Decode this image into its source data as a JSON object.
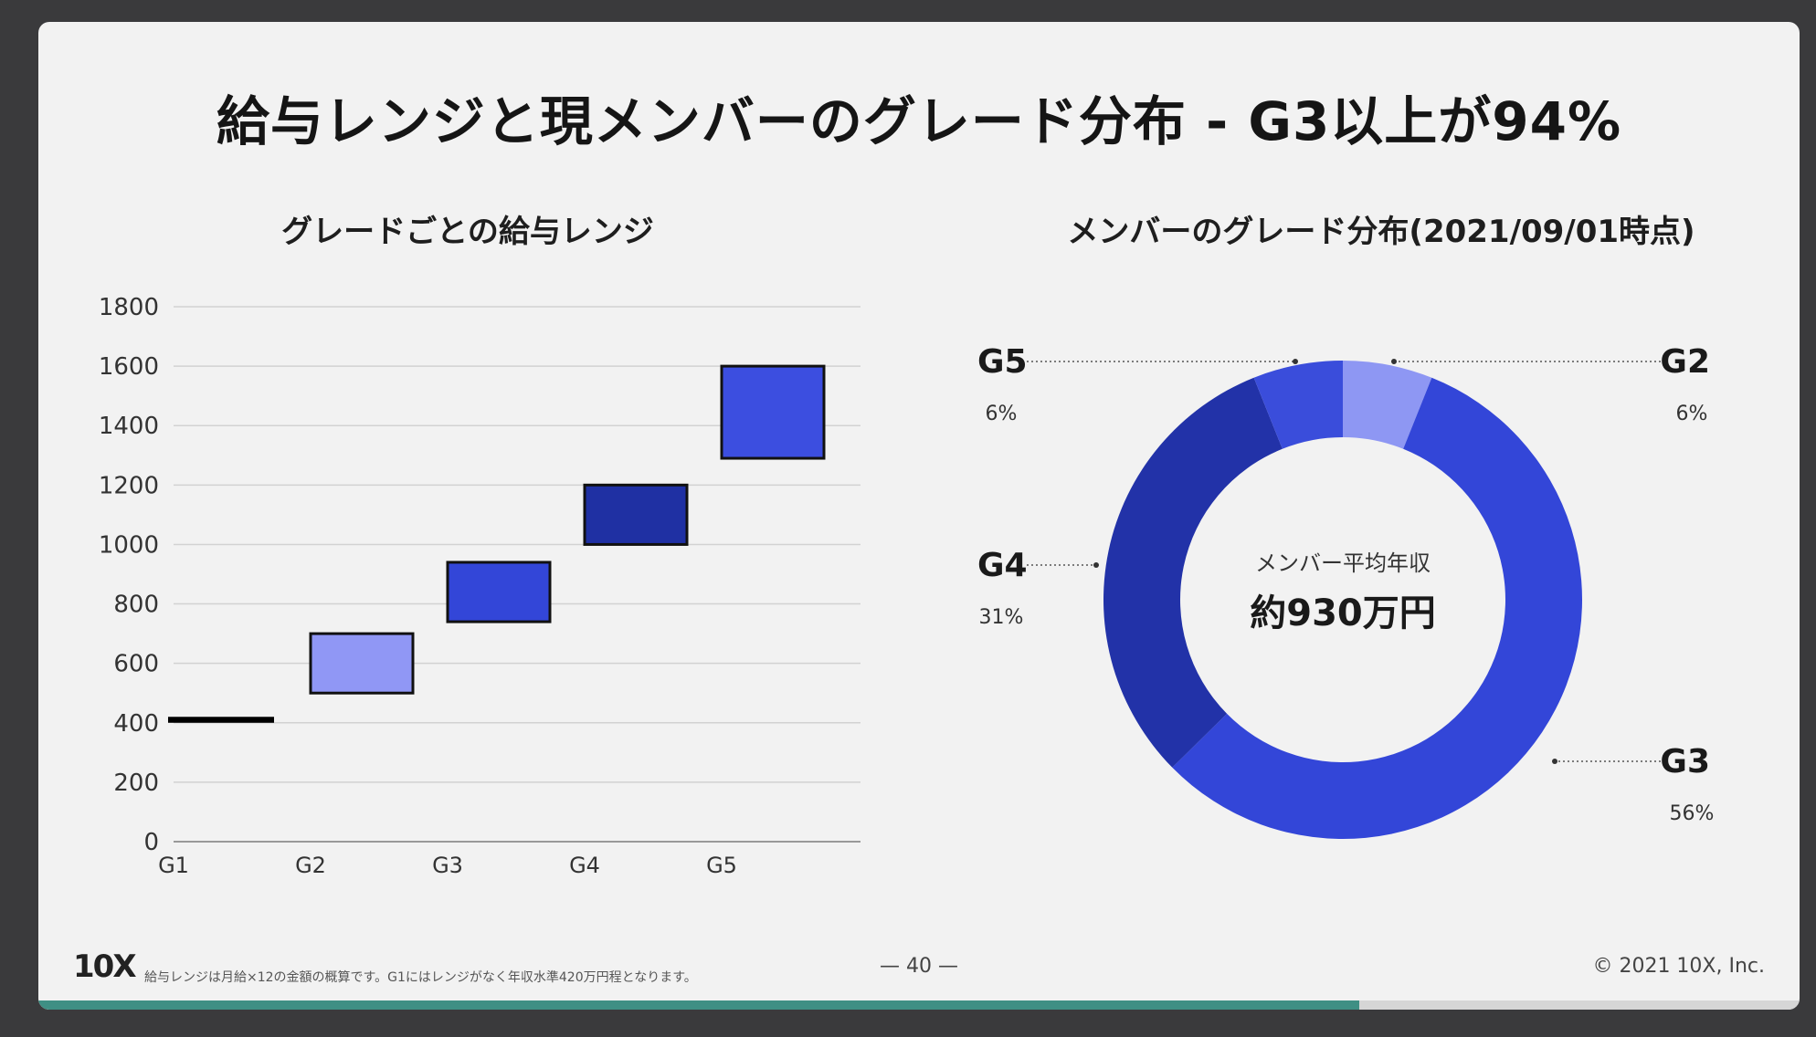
{
  "title": "給与レンジと現メンバーのグレード分布 - G3以上が94%",
  "colors": {
    "slide_bg": "#f2f2f2",
    "g1": "#000000",
    "g2": "#9097f5",
    "g3": "#3346d8",
    "g4": "#1f30a3",
    "g5": "#3c4ee0",
    "donut_g2": "#8e97f3",
    "donut_g3": "#3346d8",
    "donut_g4": "#2232a8",
    "donut_g5": "#3a4ddb",
    "progress": "#3f8f84"
  },
  "chart_data": [
    {
      "type": "bar",
      "title": "グレードごとの給与レンジ",
      "xlabel": "",
      "ylabel": "",
      "ylim": [
        0,
        1800
      ],
      "yticks": [
        0,
        200,
        400,
        600,
        800,
        1000,
        1200,
        1400,
        1600,
        1800
      ],
      "grid": true,
      "categories": [
        "G1",
        "G2",
        "G3",
        "G4",
        "G5"
      ],
      "ranges": [
        {
          "grade": "G1",
          "low": 400,
          "high": 420
        },
        {
          "grade": "G2",
          "low": 500,
          "high": 700
        },
        {
          "grade": "G3",
          "low": 740,
          "high": 940
        },
        {
          "grade": "G4",
          "low": 1000,
          "high": 1200
        },
        {
          "grade": "G5",
          "low": 1290,
          "high": 1600
        }
      ]
    },
    {
      "type": "pie",
      "title": "メンバーのグレード分布(2021/09/01時点)",
      "center_label": "メンバー平均年収",
      "center_value": "約930万円",
      "slices": [
        {
          "label": "G2",
          "value": 6,
          "display": "6%"
        },
        {
          "label": "G3",
          "value": 56,
          "display": "56%"
        },
        {
          "label": "G4",
          "value": 31,
          "display": "31%"
        },
        {
          "label": "G5",
          "value": 6,
          "display": "6%"
        }
      ]
    }
  ],
  "footer": {
    "logo": "10X",
    "note": "給与レンジは月給×12の金額の概算です。G1にはレンジがなく年収水準420万円程となります。",
    "page": "— 40 —",
    "copyright": "© 2021 10X, Inc."
  },
  "progress": 0.75
}
